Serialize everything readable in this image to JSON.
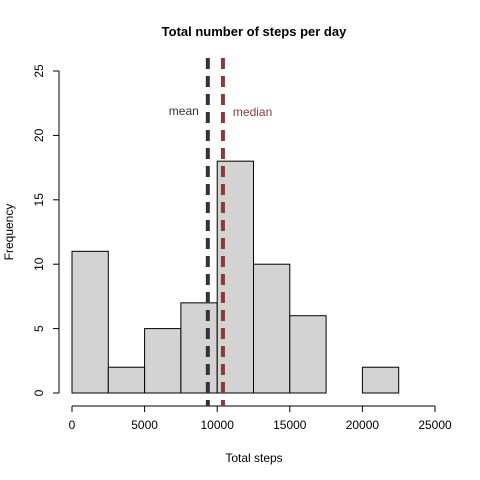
{
  "chart_data": {
    "type": "bar",
    "title": "Total number of steps per day",
    "xlabel": "Total steps",
    "ylabel": "Frequency",
    "bin_width": 2500,
    "bins": [
      {
        "start": 0,
        "end": 2500,
        "count": 11
      },
      {
        "start": 2500,
        "end": 5000,
        "count": 2
      },
      {
        "start": 5000,
        "end": 7500,
        "count": 5
      },
      {
        "start": 7500,
        "end": 10000,
        "count": 7
      },
      {
        "start": 10000,
        "end": 12500,
        "count": 18
      },
      {
        "start": 12500,
        "end": 15000,
        "count": 10
      },
      {
        "start": 15000,
        "end": 17500,
        "count": 6
      },
      {
        "start": 17500,
        "end": 20000,
        "count": 0
      },
      {
        "start": 20000,
        "end": 22500,
        "count": 2
      },
      {
        "start": 22500,
        "end": 25000,
        "count": 0
      }
    ],
    "xlim": [
      0,
      25000
    ],
    "ylim": [
      0,
      25
    ],
    "x_ticks": [
      0,
      5000,
      10000,
      15000,
      20000,
      25000
    ],
    "x_tick_labels": [
      "0",
      "5000",
      "10000",
      "15000",
      "20000",
      "25000"
    ],
    "y_ticks": [
      0,
      5,
      10,
      15,
      20,
      25
    ],
    "y_tick_labels": [
      "0",
      "5",
      "10",
      "15",
      "20",
      "25"
    ],
    "bar_color": "#d3d3d3",
    "reference_lines": [
      {
        "label": "mean",
        "value": 9354,
        "color": "#333333",
        "label_side": "left"
      },
      {
        "label": "median",
        "value": 10395,
        "color": "#8b3a3a",
        "label_side": "right"
      }
    ],
    "grid": false,
    "legend": "none"
  }
}
